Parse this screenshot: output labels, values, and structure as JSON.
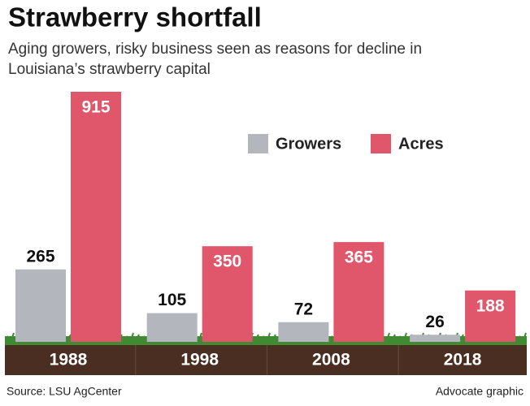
{
  "chart_data": {
    "type": "bar",
    "title": "Strawberry shortfall",
    "subtitle": [
      "Aging growers, risky business seen as reasons for decline in",
      "Louisiana’s strawberry capital"
    ],
    "categories": [
      "1988",
      "1998",
      "2008",
      "2018"
    ],
    "series": [
      {
        "name": "Growers",
        "color": "#b4b6bd",
        "values": [
          265,
          105,
          72,
          26
        ]
      },
      {
        "name": "Acres",
        "color": "#e0566b",
        "values": [
          915,
          350,
          365,
          188
        ]
      }
    ],
    "source": "Source: LSU AgCenter",
    "credit": "Advocate graphic"
  }
}
